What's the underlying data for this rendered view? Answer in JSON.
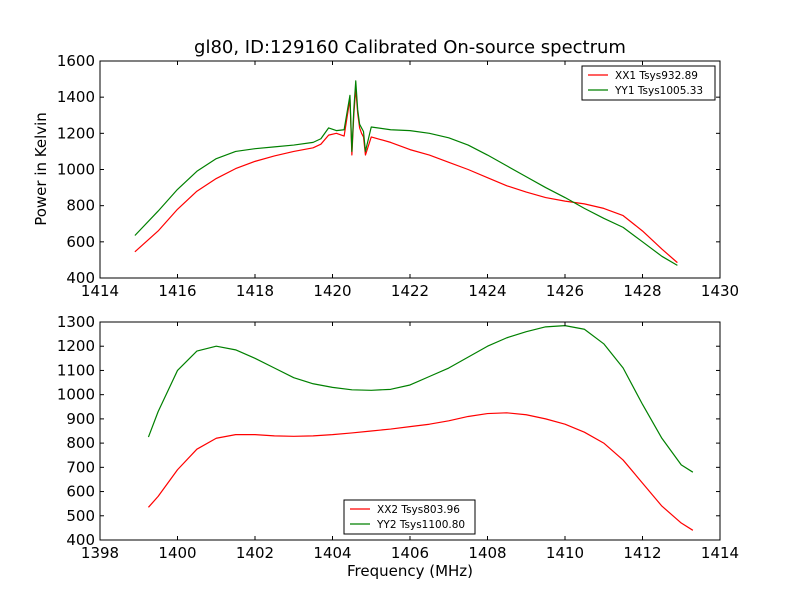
{
  "chart_data": [
    {
      "type": "line",
      "title": "gl80, ID:129160 Calibrated On-source spectrum",
      "xlabel": "",
      "ylabel": "Power in Kelvin",
      "xlim": [
        1414,
        1430
      ],
      "ylim": [
        400,
        1600
      ],
      "xticks": [
        "1414",
        "1416",
        "1418",
        "1420",
        "1422",
        "1424",
        "1426",
        "1428",
        "1430"
      ],
      "yticks": [
        "400",
        "600",
        "800",
        "1000",
        "1200",
        "1400",
        "1600"
      ],
      "grid": false,
      "legend_position": "top-right",
      "series": [
        {
          "name": "XX1 Tsys932.89",
          "color": "#ff0000",
          "x": [
            1414.9,
            1415.5,
            1416.0,
            1416.5,
            1417.0,
            1417.5,
            1418.0,
            1418.5,
            1419.0,
            1419.5,
            1419.7,
            1419.9,
            1420.1,
            1420.3,
            1420.45,
            1420.5,
            1420.55,
            1420.6,
            1420.65,
            1420.7,
            1420.75,
            1420.8,
            1420.85,
            1421.0,
            1421.5,
            1422.0,
            1422.5,
            1423.0,
            1423.5,
            1424.0,
            1424.5,
            1425.0,
            1425.5,
            1426.0,
            1426.5,
            1427.0,
            1427.5,
            1428.0,
            1428.5,
            1428.9
          ],
          "y": [
            545,
            660,
            780,
            880,
            950,
            1005,
            1045,
            1075,
            1100,
            1120,
            1140,
            1190,
            1200,
            1185,
            1390,
            1080,
            1300,
            1450,
            1310,
            1230,
            1200,
            1180,
            1080,
            1180,
            1150,
            1110,
            1080,
            1040,
            1000,
            955,
            910,
            875,
            845,
            825,
            810,
            785,
            745,
            660,
            560,
            485
          ]
        },
        {
          "name": "YY1 Tsys1005.33",
          "color": "#008000",
          "x": [
            1414.9,
            1415.5,
            1416.0,
            1416.5,
            1417.0,
            1417.5,
            1418.0,
            1418.5,
            1419.0,
            1419.5,
            1419.7,
            1419.9,
            1420.1,
            1420.3,
            1420.45,
            1420.5,
            1420.55,
            1420.6,
            1420.65,
            1420.7,
            1420.75,
            1420.8,
            1420.85,
            1421.0,
            1421.5,
            1422.0,
            1422.5,
            1423.0,
            1423.5,
            1424.0,
            1424.5,
            1425.0,
            1425.5,
            1426.0,
            1426.5,
            1427.0,
            1427.5,
            1428.0,
            1428.5,
            1428.9
          ],
          "y": [
            635,
            770,
            890,
            990,
            1060,
            1100,
            1115,
            1125,
            1135,
            1150,
            1170,
            1230,
            1215,
            1220,
            1410,
            1100,
            1330,
            1490,
            1330,
            1250,
            1230,
            1210,
            1100,
            1235,
            1220,
            1215,
            1200,
            1175,
            1135,
            1080,
            1020,
            960,
            900,
            845,
            785,
            730,
            680,
            600,
            520,
            470
          ]
        }
      ]
    },
    {
      "type": "line",
      "title": "",
      "xlabel": "Frequency (MHz)",
      "ylabel": "",
      "xlim": [
        1398,
        1414
      ],
      "ylim": [
        400,
        1300
      ],
      "xticks": [
        "1398",
        "1400",
        "1402",
        "1404",
        "1406",
        "1408",
        "1410",
        "1412",
        "1414"
      ],
      "yticks": [
        "400",
        "500",
        "600",
        "700",
        "800",
        "900",
        "1000",
        "1100",
        "1200",
        "1300"
      ],
      "grid": false,
      "legend_position": "bottom-center",
      "series": [
        {
          "name": "XX2 Tsys803.96",
          "color": "#ff0000",
          "x": [
            1399.25,
            1399.5,
            1400.0,
            1400.5,
            1401.0,
            1401.5,
            1402.0,
            1402.5,
            1403.0,
            1403.5,
            1404.0,
            1404.5,
            1405.0,
            1405.5,
            1406.0,
            1406.5,
            1407.0,
            1407.5,
            1408.0,
            1408.5,
            1409.0,
            1409.5,
            1410.0,
            1410.5,
            1411.0,
            1411.5,
            1412.0,
            1412.5,
            1413.0,
            1413.3
          ],
          "y": [
            535,
            580,
            690,
            775,
            820,
            835,
            835,
            830,
            828,
            830,
            835,
            842,
            850,
            858,
            868,
            878,
            892,
            910,
            922,
            925,
            917,
            900,
            878,
            845,
            800,
            730,
            635,
            540,
            470,
            440
          ]
        },
        {
          "name": "YY2 Tsys1100.80",
          "color": "#008000",
          "x": [
            1399.25,
            1399.5,
            1400.0,
            1400.5,
            1401.0,
            1401.5,
            1402.0,
            1402.5,
            1403.0,
            1403.5,
            1404.0,
            1404.5,
            1405.0,
            1405.5,
            1406.0,
            1406.5,
            1407.0,
            1407.5,
            1408.0,
            1408.5,
            1409.0,
            1409.5,
            1410.0,
            1410.5,
            1411.0,
            1411.5,
            1412.0,
            1412.5,
            1413.0,
            1413.3
          ],
          "y": [
            825,
            930,
            1100,
            1180,
            1200,
            1185,
            1150,
            1110,
            1070,
            1045,
            1030,
            1020,
            1018,
            1022,
            1040,
            1075,
            1110,
            1155,
            1200,
            1235,
            1260,
            1280,
            1285,
            1270,
            1210,
            1110,
            960,
            820,
            710,
            680
          ]
        }
      ]
    }
  ]
}
